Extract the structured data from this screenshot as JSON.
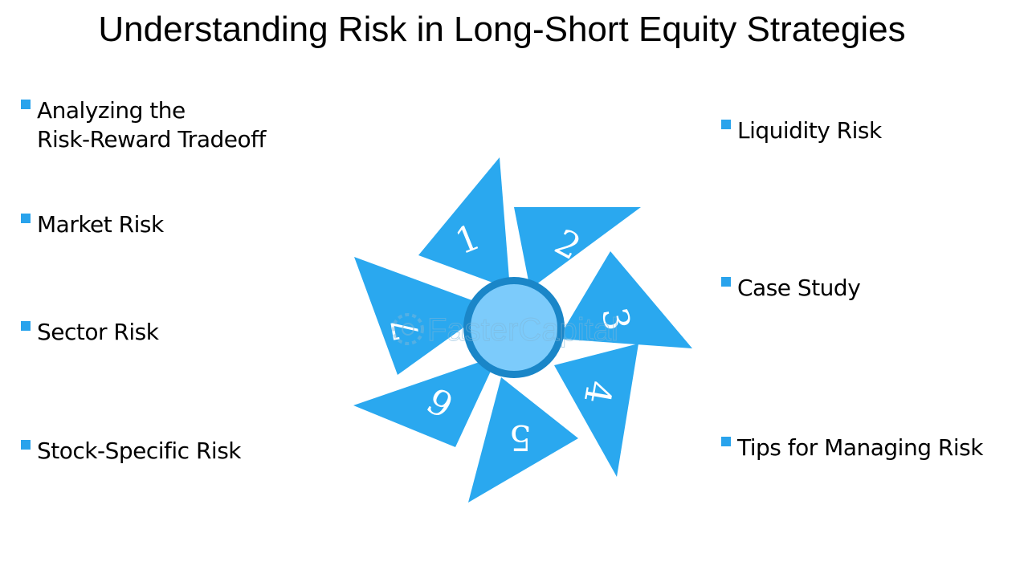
{
  "title": "Understanding Risk in Long-Short Equity Strategies",
  "left_items": [
    {
      "line1": "Analyzing the",
      "line2": "Risk-Reward Tradeoff"
    },
    {
      "line1": "Market Risk"
    },
    {
      "line1": "Sector Risk"
    },
    {
      "line1": "Stock-Specific Risk"
    }
  ],
  "right_items": [
    {
      "line1": "Liquidity Risk"
    },
    {
      "line1": "Case Study"
    },
    {
      "line1": "Tips for Managing Risk"
    }
  ],
  "blades": [
    {
      "number": "1"
    },
    {
      "number": "2"
    },
    {
      "number": "3"
    },
    {
      "number": "4"
    },
    {
      "number": "5"
    },
    {
      "number": "6"
    },
    {
      "number": "7"
    }
  ],
  "watermark": "FasterCapital",
  "colors": {
    "blade": "#2aa8ef",
    "hub_ring": "#1a86c8",
    "hub_fill": "#7ccbfb",
    "bullet": "#29a3ec",
    "text": "#000000"
  }
}
